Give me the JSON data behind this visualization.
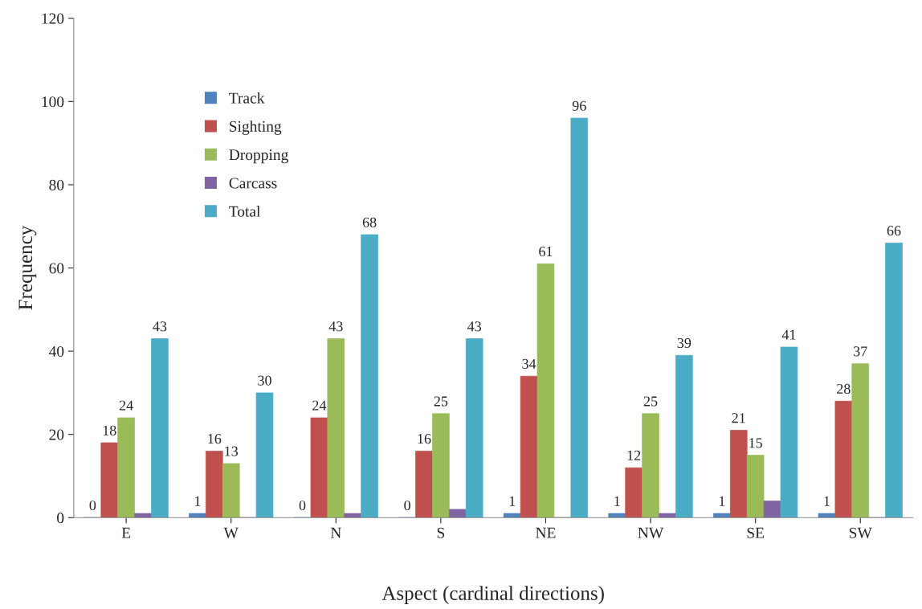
{
  "chart_data": {
    "type": "bar",
    "xlabel": "Aspect (cardinal directions)",
    "ylabel": "Frequency",
    "categories": [
      "E",
      "W",
      "N",
      "S",
      "NE",
      "NW",
      "SE",
      "SW"
    ],
    "series": [
      {
        "name": "Track",
        "color": "#4f81bd",
        "values": [
          0,
          1,
          0,
          0,
          1,
          1,
          1,
          1
        ],
        "value_labels": [
          "0",
          "1",
          "0",
          "0",
          "1",
          "1",
          "1",
          "1"
        ]
      },
      {
        "name": "Sighting",
        "color": "#c0504d",
        "values": [
          18,
          16,
          24,
          16,
          34,
          12,
          21,
          28
        ],
        "value_labels": [
          "18",
          "16",
          "24",
          "16",
          "34",
          "12",
          "21",
          "28"
        ]
      },
      {
        "name": "Dropping",
        "color": "#9bbb59",
        "values": [
          24,
          13,
          43,
          25,
          61,
          25,
          15,
          37
        ],
        "value_labels": [
          "24",
          "13",
          "43",
          "25",
          "61",
          "25",
          "15",
          "37"
        ]
      },
      {
        "name": "Carcass",
        "color": "#8064a2",
        "values": [
          1,
          0,
          1,
          2,
          0,
          1,
          4,
          0
        ]
      },
      {
        "name": "Total",
        "color": "#4bacc6",
        "values": [
          43,
          30,
          68,
          43,
          96,
          39,
          41,
          66
        ],
        "value_labels": [
          "43",
          "30",
          "68",
          "43",
          "96",
          "39",
          "41",
          "66"
        ]
      }
    ],
    "ylim": [
      0,
      120
    ],
    "yticks": [
      0,
      20,
      40,
      60,
      80,
      100,
      120
    ],
    "grid": false,
    "legend": "top left"
  }
}
